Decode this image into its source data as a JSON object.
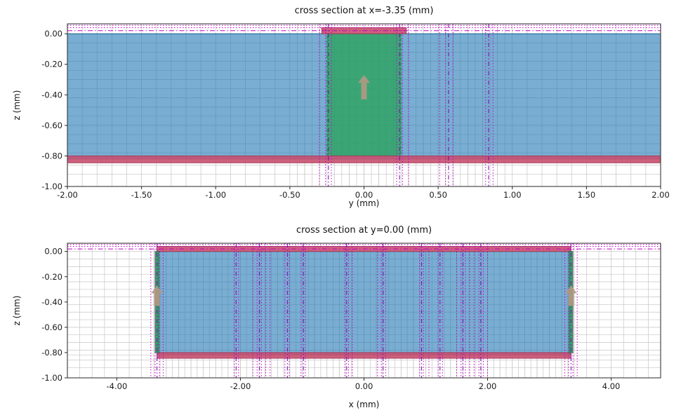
{
  "style": {
    "mesh_color": "#c6c6c6",
    "magenta": "#c400c4",
    "purple": "#7c00ad",
    "frame": "#262626",
    "arrow": "#b29a83",
    "text_color": "#1a1a1a"
  },
  "chart_data": [
    {
      "type": "area",
      "subtype": "simulation_mesh_cross_section",
      "title": "cross section at x=-3.35 (mm)",
      "xlabel": "y (mm)",
      "ylabel": "z (mm)",
      "xlim": [
        -2.0,
        2.0
      ],
      "ylim": [
        -1.0,
        0.065
      ],
      "grid": true,
      "xtick_vals": [
        -2.0,
        -1.5,
        -1.0,
        -0.5,
        0.0,
        0.5,
        1.0,
        1.5,
        2.0
      ],
      "xtick_labels": [
        "-2.00",
        "-1.50",
        "-1.00",
        "-0.50",
        "0.00",
        "0.50",
        "1.00",
        "1.50",
        "2.00"
      ],
      "ytick_vals": [
        0.0,
        -0.2,
        -0.4,
        -0.6,
        -0.8,
        -1.0
      ],
      "ytick_labels": [
        "0.00",
        "-0.20",
        "-0.40",
        "-0.60",
        "-0.80",
        "-1.00"
      ],
      "mesh": {
        "x": {
          "min": -2.0,
          "max": 2.0,
          "step": 0.1,
          "fine_min": -0.45,
          "fine_max": 0.95,
          "fine_step": 0.05
        },
        "z": [
          0.0,
          -0.06,
          -0.12,
          -0.18,
          -0.24,
          -0.3,
          -0.36,
          -0.42,
          -0.48,
          -0.54,
          -0.6,
          -0.66,
          -0.72,
          -0.78,
          -0.82,
          -0.86,
          -0.92
        ]
      },
      "regions": [
        {
          "name": "substrate",
          "x0": -2.0,
          "x1": 2.0,
          "z0": -0.82,
          "z1": 0.0,
          "fill": "#1f77b4",
          "alpha": 0.6,
          "stroke": "#17618f"
        },
        {
          "name": "patch-dielectric",
          "x0": -0.25,
          "x1": 0.25,
          "z0": -0.8,
          "z1": 0.0,
          "fill": "#2ca25f",
          "alpha": 0.8,
          "stroke": "#1d7a44",
          "dash": "4 3"
        },
        {
          "name": "metal-top",
          "x0": -0.285,
          "x1": 0.285,
          "z0": 0.0,
          "z1": 0.04,
          "fill": "#c85070",
          "alpha": 0.9,
          "stroke": "#a93a59"
        },
        {
          "name": "metal-bottom",
          "x0": -2.0,
          "x1": 2.0,
          "z0": -0.845,
          "z1": -0.8,
          "fill": "#c85070",
          "alpha": 0.9,
          "stroke": "#a93a59"
        }
      ],
      "vlines_dotted": [
        -0.3,
        -0.26,
        -0.22,
        0.22,
        0.26,
        0.3,
        0.51,
        0.55,
        0.6,
        0.82,
        0.87
      ],
      "vlines_dashed": [
        -0.24,
        0.24,
        0.57,
        0.84
      ],
      "hlines_dotted": [
        0.055,
        0.04
      ],
      "hlines_dashdot": [
        0.02
      ],
      "arrows": [
        {
          "x": 0.0,
          "z_tail": -0.43,
          "z_head": -0.27
        }
      ]
    },
    {
      "type": "area",
      "subtype": "simulation_mesh_cross_section",
      "title": "cross section at y=0.00 (mm)",
      "xlabel": "x (mm)",
      "ylabel": "z (mm)",
      "xlim": [
        -4.8,
        4.8
      ],
      "ylim": [
        -1.0,
        0.065
      ],
      "grid": true,
      "xtick_vals": [
        -4.0,
        -2.0,
        0.0,
        2.0,
        4.0
      ],
      "xtick_labels": [
        "-4.00",
        "-2.00",
        "0.00",
        "2.00",
        "4.00"
      ],
      "ytick_vals": [
        0.0,
        -0.2,
        -0.4,
        -0.6,
        -0.8,
        -1.0
      ],
      "ytick_labels": [
        "0.00",
        "-0.20",
        "-0.40",
        "-0.60",
        "-0.80",
        "-1.00"
      ],
      "mesh": {
        "x": {
          "min": -4.8,
          "max": 4.8,
          "step": 0.2,
          "fine_min": -3.4,
          "fine_max": 3.4,
          "fine_step": 0.1
        },
        "z": [
          0.0,
          -0.06,
          -0.12,
          -0.18,
          -0.24,
          -0.3,
          -0.36,
          -0.42,
          -0.48,
          -0.54,
          -0.6,
          -0.66,
          -0.72,
          -0.78,
          -0.82,
          -0.86,
          -0.92
        ]
      },
      "regions": [
        {
          "name": "substrate",
          "x0": -3.35,
          "x1": 3.35,
          "z0": -0.82,
          "z1": 0.0,
          "fill": "#1f77b4",
          "alpha": 0.6,
          "stroke": "#17618f"
        },
        {
          "name": "metal-top",
          "x0": -3.35,
          "x1": 3.35,
          "z0": 0.0,
          "z1": 0.04,
          "fill": "#c85070",
          "alpha": 0.9,
          "stroke": "#a93a59"
        },
        {
          "name": "metal-bottom",
          "x0": -3.35,
          "x1": 3.35,
          "z0": -0.845,
          "z1": -0.8,
          "fill": "#c85070",
          "alpha": 0.9,
          "stroke": "#a93a59"
        },
        {
          "name": "feed-left",
          "x0": -3.38,
          "x1": -3.32,
          "z0": -0.8,
          "z1": 0.0,
          "fill": "#2ca25f",
          "alpha": 0.9,
          "stroke": "#1d7a44"
        },
        {
          "name": "feed-right",
          "x0": 3.32,
          "x1": 3.38,
          "z0": -0.8,
          "z1": 0.0,
          "fill": "#2ca25f",
          "alpha": 0.9,
          "stroke": "#1d7a44"
        }
      ],
      "vlines_dotted": [
        -3.45,
        -3.38,
        -3.31,
        -3.25,
        -2.1,
        -2.03,
        -1.8,
        -1.73,
        -1.66,
        -1.59,
        -1.52,
        -1.28,
        -1.21,
        -1.02,
        -0.95,
        -0.31,
        -0.25,
        -0.19,
        0.22,
        0.28,
        0.35,
        0.9,
        0.96,
        1.05,
        1.2,
        1.27,
        1.5,
        1.57,
        1.64,
        1.71,
        1.78,
        1.86,
        1.93,
        2.0,
        3.25,
        3.31,
        3.38,
        3.45
      ],
      "vlines_dashed": [
        -3.35,
        -2.07,
        -1.69,
        -1.24,
        -0.98,
        -0.28,
        0.31,
        0.93,
        1.23,
        1.6,
        1.89,
        3.35
      ],
      "hlines_dotted": [
        0.055,
        0.04
      ],
      "hlines_dashdot": [
        0.02
      ],
      "arrows": [
        {
          "x": -3.35,
          "z_tail": -0.43,
          "z_head": -0.27
        },
        {
          "x": 3.35,
          "z_tail": -0.43,
          "z_head": -0.27
        }
      ]
    }
  ]
}
